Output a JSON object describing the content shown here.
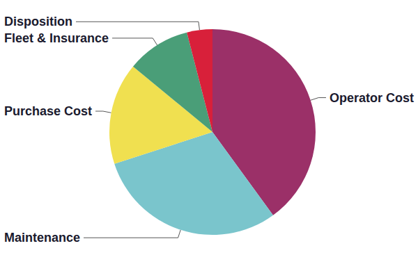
{
  "chart_data": {
    "type": "pie",
    "categories": [
      "Operator Cost",
      "Maintenance",
      "Purchase Cost",
      "Fleet & Insurance",
      "Disposition"
    ],
    "values": [
      40,
      30,
      16,
      10,
      4
    ],
    "colors": [
      "#9b3068",
      "#7ac5cc",
      "#f0e050",
      "#4a9e78",
      "#d8203a"
    ]
  }
}
